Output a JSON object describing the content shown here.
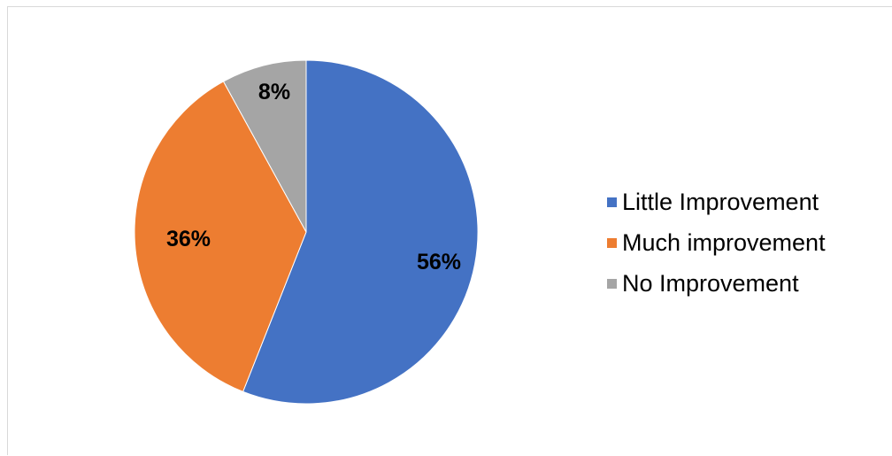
{
  "chart_data": {
    "type": "pie",
    "categories": [
      "Little Improvement",
      "Much improvement",
      "No Improvement"
    ],
    "values": [
      56,
      36,
      8
    ],
    "data_labels": [
      "56%",
      "36%",
      "8%"
    ],
    "colors": [
      "#4472c4",
      "#ed7d31",
      "#a5a5a5"
    ],
    "title": "",
    "legend_position": "right",
    "start_angle": "12 o'clock, clockwise"
  }
}
